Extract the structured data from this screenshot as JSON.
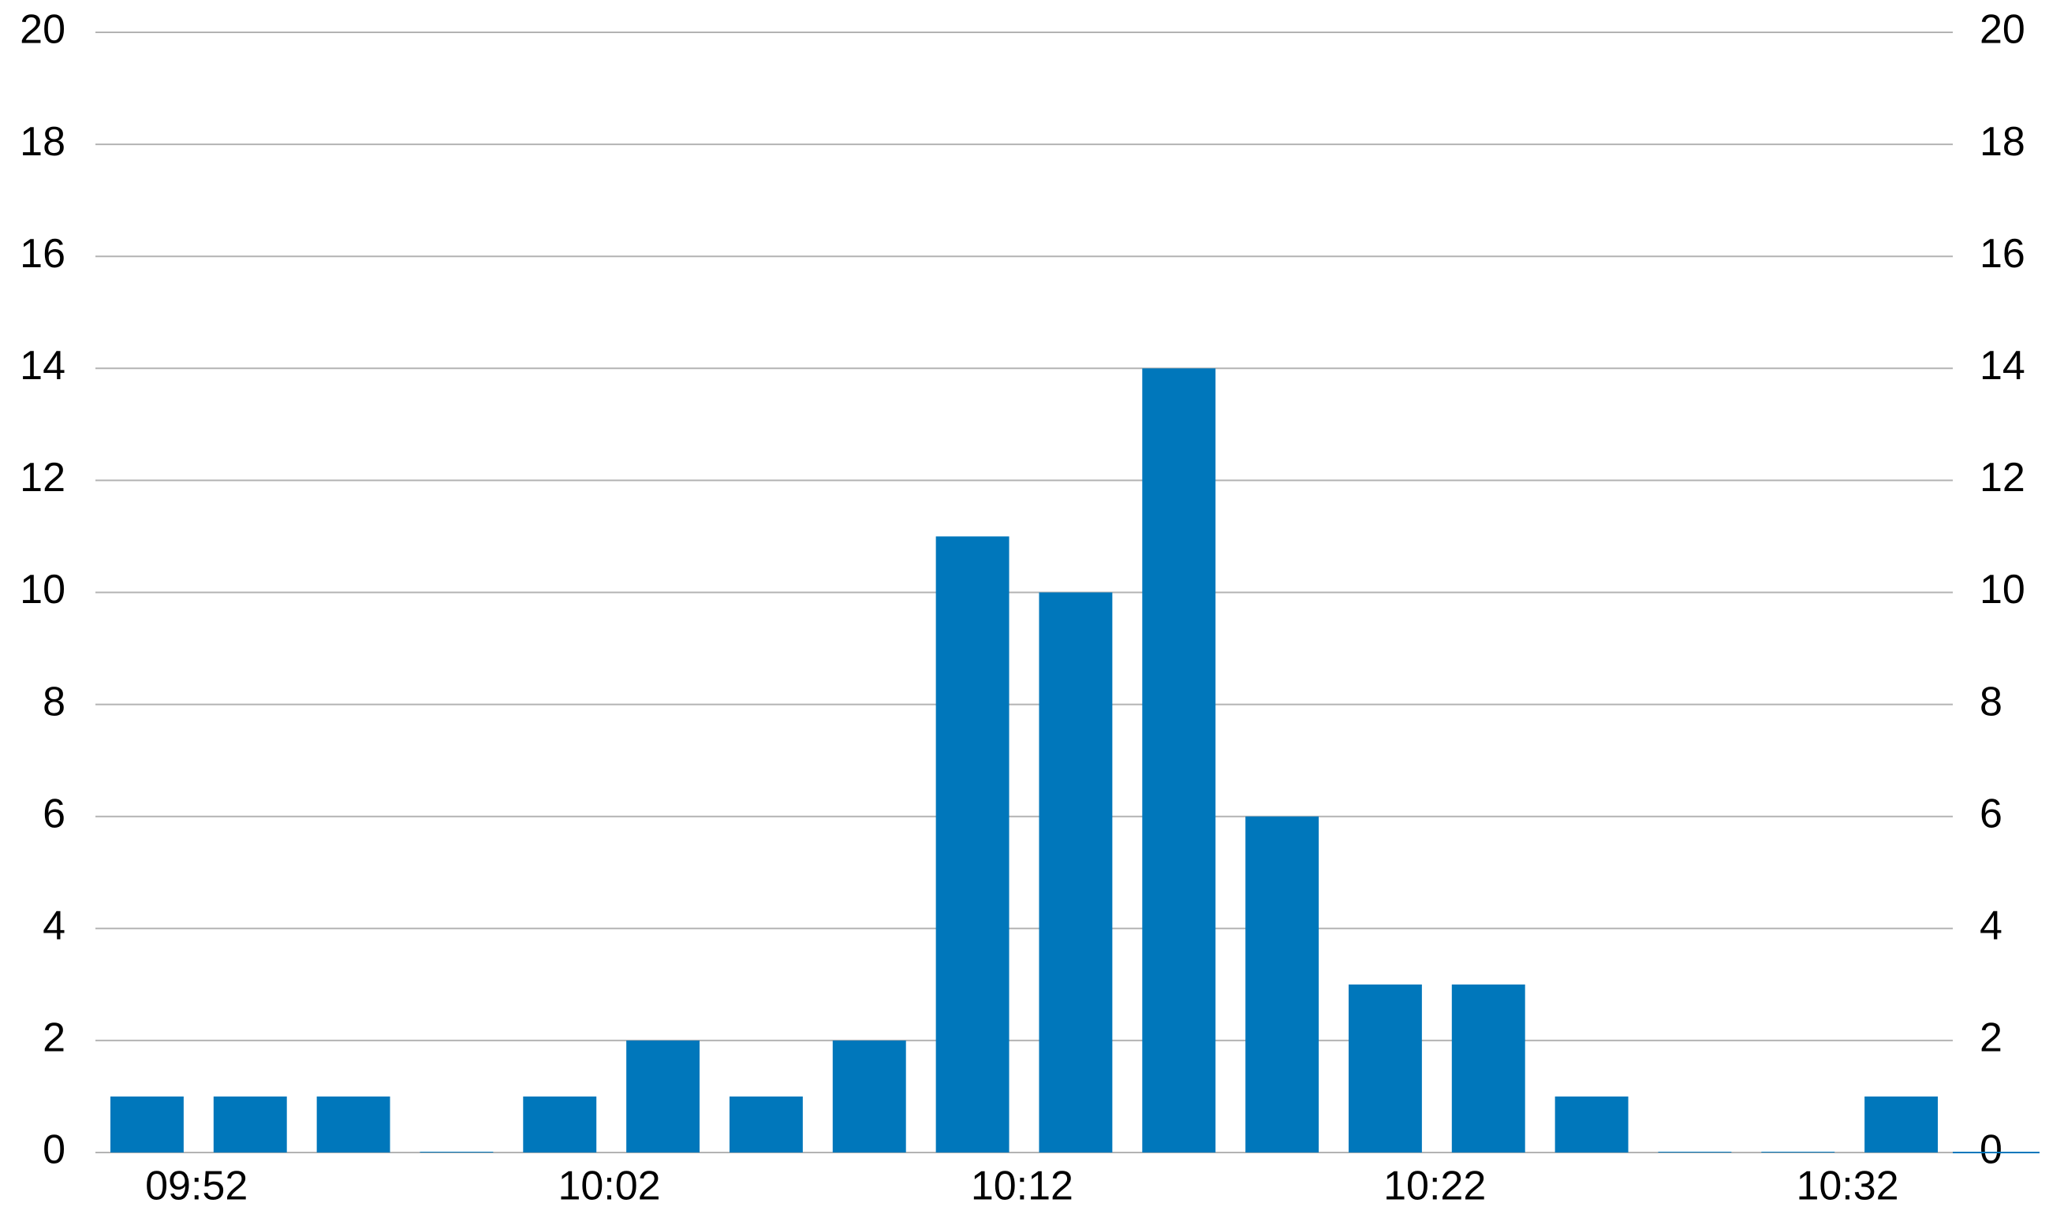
{
  "chart_data": {
    "type": "bar",
    "categories": [
      "09:52",
      null,
      null,
      null,
      "10:02",
      null,
      null,
      null,
      "10:12",
      null,
      null,
      null,
      "10:22",
      null,
      null,
      null,
      "10:32",
      null
    ],
    "values": [
      1,
      1,
      1,
      0,
      1,
      2,
      1,
      2,
      11,
      10,
      14,
      6,
      3,
      3,
      1,
      0,
      0,
      1
    ],
    "color": "#0077bb",
    "ylim": [
      0,
      20
    ],
    "yticks": [
      0,
      2,
      4,
      6,
      8,
      10,
      12,
      14,
      16,
      18,
      20
    ],
    "y2lim": [
      0,
      20
    ],
    "y2ticks": [
      0,
      2,
      4,
      6,
      8,
      10,
      12,
      14,
      16,
      18,
      20
    ],
    "grid": true
  }
}
